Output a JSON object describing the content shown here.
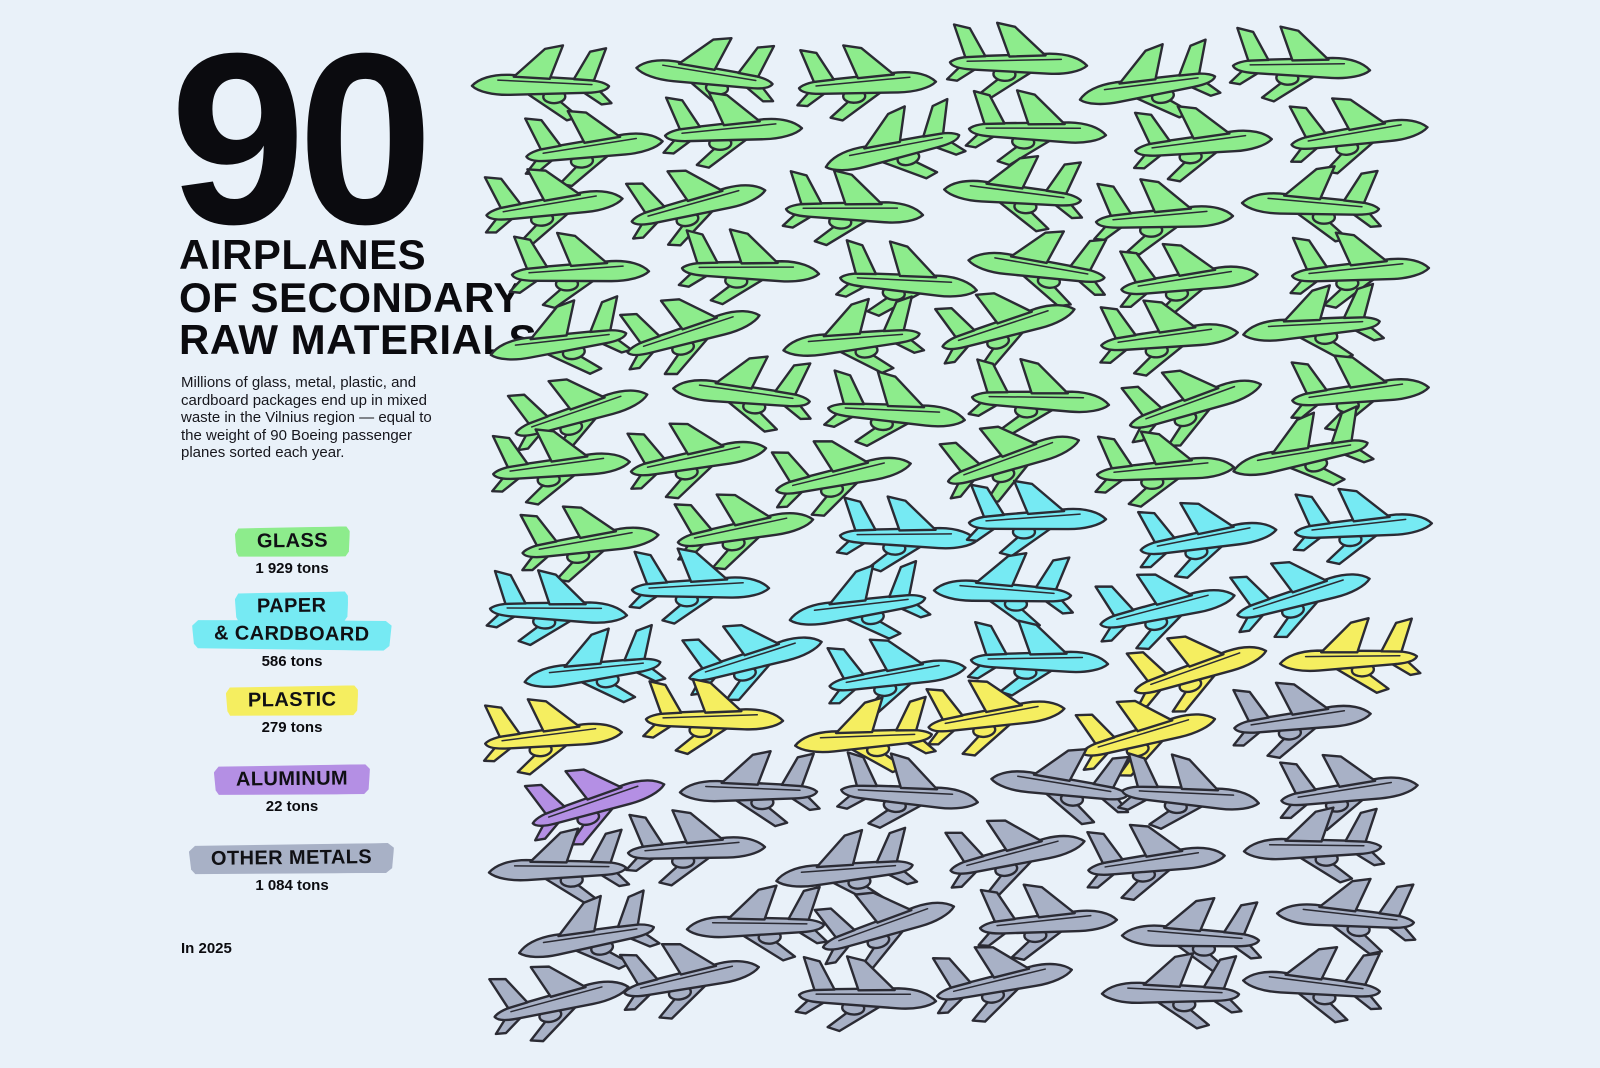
{
  "background_color": "#e9f1f9",
  "outline_color": "#2b2b34",
  "title": {
    "number": "90",
    "lines": "AIRPLANES\nOF SECONDARY\nRAW MATERIALS"
  },
  "description": "Millions of glass, metal, plastic, and cardboard packages end up in mixed waste in the Vilnius region — equal to the weight of 90 Boeing passenger planes sorted each year.",
  "footnote": "In 2025",
  "legend": [
    {
      "id": "glass",
      "lines": [
        "GLASS"
      ],
      "tons": "1 929 tons",
      "color": "#8dec8c"
    },
    {
      "id": "paper_cardboard",
      "lines": [
        "PAPER",
        "& CARDBOARD"
      ],
      "tons": "586 tons",
      "color": "#76eaf3"
    },
    {
      "id": "plastic",
      "lines": [
        "PLASTIC"
      ],
      "tons": "279 tons",
      "color": "#f5ee60"
    },
    {
      "id": "aluminum",
      "lines": [
        "ALUMINUM"
      ],
      "tons": "22 tons",
      "color": "#b48fe4"
    },
    {
      "id": "other_metals",
      "lines": [
        "OTHER METALS"
      ],
      "tons": "1 084 tons",
      "color": "#a8b1c6"
    }
  ],
  "chart_data": {
    "type": "pictogram",
    "title": "90 airplanes of secondary raw materials",
    "icon": "airplane",
    "total_icons": 90,
    "note": "In 2025",
    "categories": [
      "Glass",
      "Paper & cardboard",
      "Plastic",
      "Aluminum",
      "Other metals"
    ],
    "values_tons": [
      1929,
      586,
      279,
      22,
      1084
    ],
    "icon_counts": [
      44,
      14,
      7,
      1,
      24
    ],
    "colors": [
      "#8dec8c",
      "#76eaf3",
      "#f5ee60",
      "#b48fe4",
      "#a8b1c6"
    ],
    "legend_position": "left",
    "grid": {
      "rows": 15,
      "cols": 6,
      "fill_order": "row-major-left-to-right",
      "segments": [
        {
          "material": "glass",
          "count": 44
        },
        {
          "material": "paper_cardboard",
          "count": 14
        },
        {
          "material": "plastic",
          "count": 7
        },
        {
          "material": "other_metals",
          "count": 1
        },
        {
          "material": "aluminum",
          "count": 1
        },
        {
          "material": "other_metals",
          "count": 23
        }
      ]
    }
  }
}
